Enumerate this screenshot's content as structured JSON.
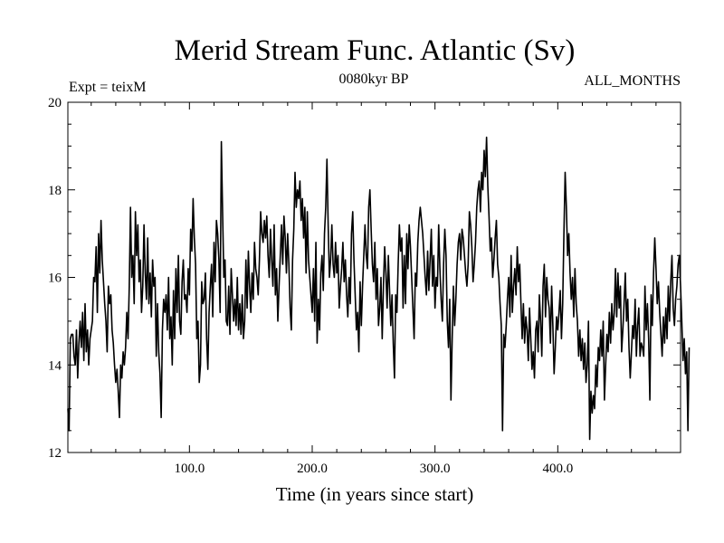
{
  "chart_data": {
    "type": "line",
    "title": "Merid Stream Func. Atlantic (Sv)",
    "subtitle_left": "Expt = teixM",
    "subtitle_center": "0080kyr BP",
    "subtitle_right": "ALL_MONTHS",
    "xlabel": "Time (in years since start)",
    "ylabel": "",
    "xlim": [
      1,
      500
    ],
    "ylim": [
      12,
      20
    ],
    "x_ticks": [
      100,
      200,
      300,
      400
    ],
    "x_tick_labels": [
      "100.0",
      "200.0",
      "300.0",
      "400.0"
    ],
    "y_ticks": [
      12,
      14,
      16,
      18,
      20
    ],
    "y_tick_labels": [
      "12",
      "14",
      "16",
      "18",
      "20"
    ],
    "grid": false,
    "series": [
      {
        "color": "#000000",
        "x_start": 1,
        "x_step": 1,
        "values": [
          13.0,
          12.5,
          14.6,
          14.7,
          14.7,
          14.2,
          14.0,
          14.8,
          13.7,
          14.5,
          15.0,
          14.4,
          15.2,
          14.1,
          15.4,
          14.3,
          14.8,
          14.0,
          14.6,
          14.8,
          15.0,
          16.0,
          15.9,
          16.7,
          15.2,
          17.0,
          16.1,
          17.3,
          16.4,
          15.9,
          15.4,
          15.0,
          14.3,
          15.8,
          15.4,
          15.6,
          14.8,
          14.5,
          14.0,
          13.6,
          13.9,
          13.4,
          12.8,
          14.0,
          13.7,
          14.3,
          14.0,
          14.4,
          15.2,
          14.6,
          15.8,
          17.6,
          16.0,
          16.5,
          15.4,
          17.5,
          16.5,
          17.2,
          15.9,
          16.4,
          15.2,
          15.8,
          17.2,
          16.1,
          15.5,
          16.9,
          15.4,
          16.1,
          15.1,
          16.4,
          15.8,
          16.0,
          14.2,
          15.4,
          14.3,
          13.8,
          12.8,
          14.8,
          15.5,
          15.2,
          15.6,
          14.8,
          16.0,
          14.6,
          15.1,
          14.0,
          15.7,
          14.6,
          16.2,
          15.2,
          16.5,
          15.0,
          14.7,
          15.9,
          16.4,
          15.5,
          15.6,
          15.2,
          16.2,
          15.6,
          17.1,
          16.6,
          17.8,
          16.9,
          16.3,
          14.6,
          15.0,
          13.6,
          14.0,
          15.9,
          15.4,
          15.5,
          16.1,
          14.6,
          13.9,
          15.2,
          15.8,
          16.3,
          15.1,
          16.8,
          15.9,
          17.3,
          17.0,
          16.4,
          15.2,
          19.1,
          17.5,
          16.0,
          16.4,
          15.0,
          14.9,
          15.8,
          14.7,
          16.2,
          15.6,
          15.0,
          15.5,
          14.9,
          16.0,
          14.8,
          15.4,
          14.7,
          15.6,
          14.6,
          15.0,
          16.4,
          15.3,
          16.6,
          15.8,
          15.2,
          16.1,
          15.5,
          16.8,
          16.2,
          16.0,
          15.6,
          16.4,
          17.5,
          17.0,
          16.8,
          17.3,
          16.9,
          17.4,
          16.5,
          16.0,
          17.1,
          16.4,
          15.8,
          17.2,
          15.6,
          16.2,
          15.0,
          15.8,
          16.5,
          17.2,
          16.3,
          17.4,
          16.9,
          16.1,
          17.0,
          16.3,
          15.3,
          14.8,
          16.4,
          17.1,
          18.4,
          17.6,
          18.0,
          17.8,
          18.2,
          17.3,
          17.8,
          16.9,
          17.6,
          16.1,
          17.5,
          16.4,
          16.0,
          15.6,
          15.2,
          16.2,
          15.0,
          16.8,
          14.5,
          15.5,
          14.8,
          16.1,
          16.5,
          15.7,
          17.0,
          17.6,
          18.7,
          17.2,
          16.0,
          16.4,
          17.2,
          16.3,
          16.0,
          16.8,
          16.1,
          16.5,
          15.3,
          15.8,
          16.2,
          16.8,
          15.9,
          16.4,
          15.6,
          15.1,
          16.0,
          15.4,
          17.0,
          17.5,
          16.4,
          15.6,
          14.8,
          15.2,
          14.3,
          15.9,
          14.9,
          15.8,
          16.5,
          17.2,
          16.5,
          16.2,
          17.6,
          18.0,
          17.1,
          16.3,
          15.9,
          16.8,
          15.5,
          16.2,
          14.9,
          15.3,
          16.0,
          14.6,
          15.8,
          16.7,
          16.1,
          15.3,
          16.5,
          15.7,
          14.9,
          15.6,
          14.5,
          13.7,
          15.6,
          15.2,
          16.3,
          17.2,
          16.6,
          16.9,
          15.3,
          16.5,
          15.4,
          17.0,
          16.2,
          17.2,
          16.7,
          16.0,
          15.3,
          14.6,
          16.1,
          15.8,
          16.8,
          17.3,
          17.6,
          17.3,
          17.0,
          16.5,
          16.0,
          15.6,
          16.6,
          15.7,
          16.4,
          17.1,
          15.8,
          16.5,
          15.3,
          16.0,
          15.8,
          17.2,
          16.2,
          15.5,
          15.0,
          16.3,
          17.1,
          16.5,
          15.0,
          14.4,
          15.5,
          13.2,
          14.6,
          15.8,
          14.9,
          15.5,
          16.3,
          16.8,
          17.0,
          16.4,
          17.1,
          16.9,
          16.5,
          16.1,
          15.8,
          16.3,
          17.5,
          17.2,
          16.7,
          15.9,
          16.3,
          16.8,
          17.6,
          18.0,
          18.2,
          17.5,
          18.4,
          18.0,
          18.9,
          18.3,
          19.2,
          18.1,
          17.4,
          16.6,
          16.9,
          16.0,
          16.4,
          16.9,
          17.3,
          16.3,
          16.0,
          15.4,
          14.9,
          12.5,
          14.7,
          14.4,
          14.9,
          15.5,
          16.0,
          15.1,
          16.5,
          15.2,
          15.8,
          16.2,
          15.6,
          16.7,
          15.9,
          16.3,
          15.4,
          14.6,
          15.4,
          14.5,
          15.1,
          14.8,
          14.1,
          15.3,
          14.6,
          13.9,
          14.3,
          13.7,
          14.8,
          15.0,
          14.3,
          15.6,
          15.0,
          14.2,
          15.8,
          16.3,
          15.1,
          16.0,
          15.5,
          15.3,
          14.5,
          15.8,
          14.9,
          13.8,
          14.4,
          15.1,
          14.8,
          15.2,
          15.7,
          14.6,
          15.4,
          17.0,
          18.4,
          17.6,
          16.5,
          17.0,
          16.1,
          15.5,
          16.0,
          15.1,
          16.2,
          15.4,
          15.0,
          14.2,
          14.8,
          14.1,
          14.6,
          13.9,
          14.5,
          13.6,
          14.0,
          15.0,
          12.3,
          13.4,
          12.9,
          13.3,
          13.0,
          14.0,
          13.5,
          14.4,
          14.1,
          14.8,
          14.2,
          15.0,
          13.2,
          14.0,
          14.7,
          14.3,
          15.2,
          14.5,
          15.4,
          14.8,
          15.2,
          16.2,
          15.1,
          16.1,
          15.3,
          15.8,
          14.3,
          14.8,
          15.4,
          16.1,
          15.0,
          15.5,
          14.4,
          13.7,
          14.3,
          14.9,
          14.6,
          15.5,
          14.2,
          14.9,
          15.3,
          14.2,
          14.5,
          14.4,
          14.2,
          15.8,
          14.8,
          15.4,
          14.6,
          13.2,
          15.6,
          14.9,
          16.1,
          16.9,
          16.2,
          15.4,
          15.9,
          15.2,
          14.7,
          14.2,
          15.1,
          14.5,
          15.3,
          14.6,
          15.8,
          15.0,
          15.9,
          16.5,
          15.3,
          14.9,
          15.5,
          15.8,
          16.3,
          16.5,
          15.8,
          15.0,
          14.1,
          14.6,
          13.8,
          14.3,
          12.5,
          14.4
        ]
      }
    ]
  }
}
